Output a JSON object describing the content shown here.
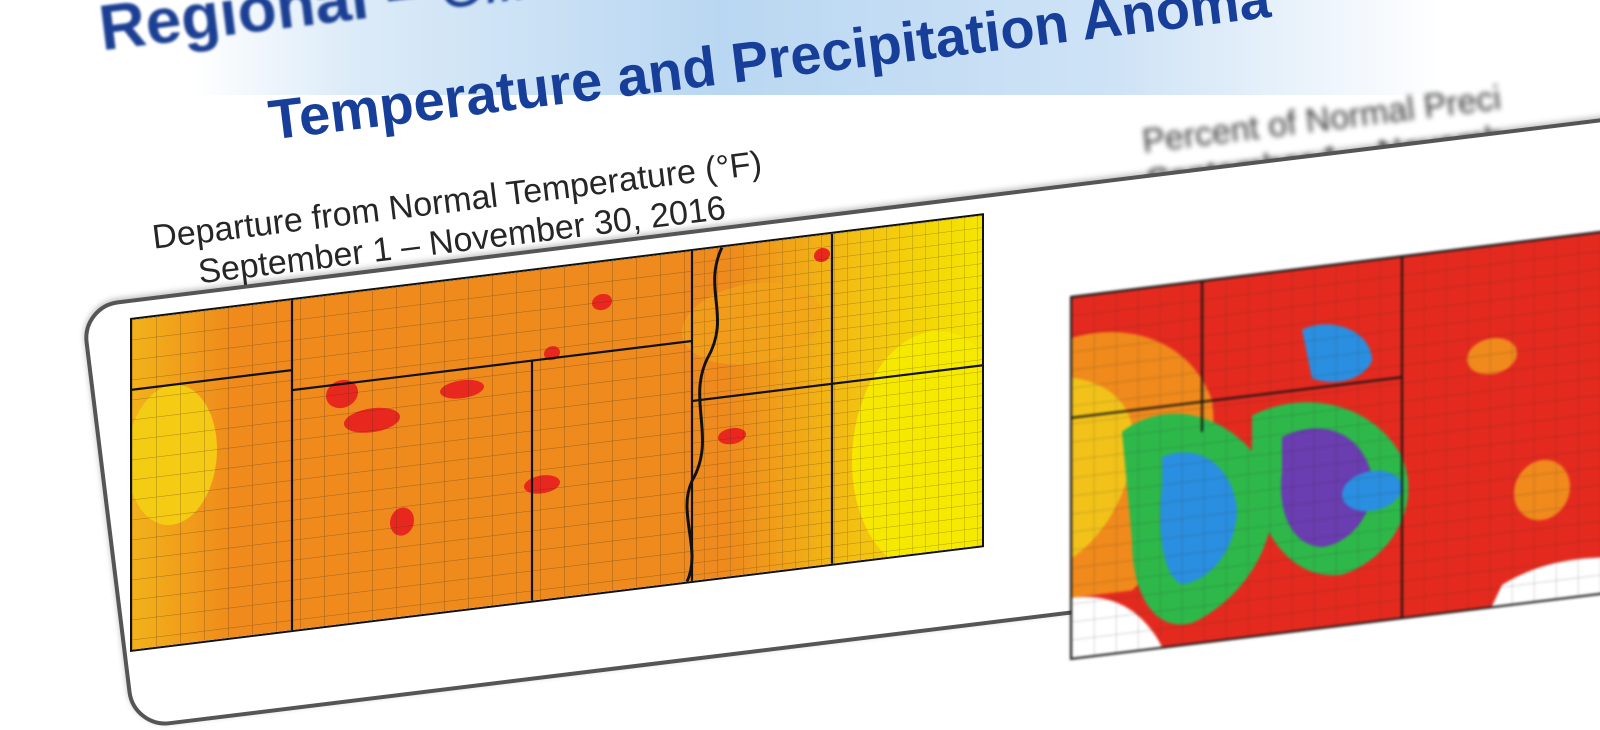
{
  "slide": {
    "heading_main": "Regional – ",
    "heading_italic": "Clima",
    "subtitle": "Temperature and Precipitation Anoma"
  },
  "left_map": {
    "caption_line1": "Departure from Normal Temperature (°F)",
    "caption_line2": "September 1 – November 30, 2016"
  },
  "right_map": {
    "caption_line1": "Percent of Normal Preci",
    "caption_line2": "September 1 – Novemb"
  },
  "colors": {
    "title_blue": "#1b3f93",
    "temp_orange": "#f08a1c",
    "temp_yellow": "#f5e400",
    "temp_red": "#e8281e",
    "precip_red": "#e42a1f",
    "precip_green": "#2eb84a",
    "precip_blue": "#2a8fe0",
    "precip_purple": "#6a3db0"
  }
}
